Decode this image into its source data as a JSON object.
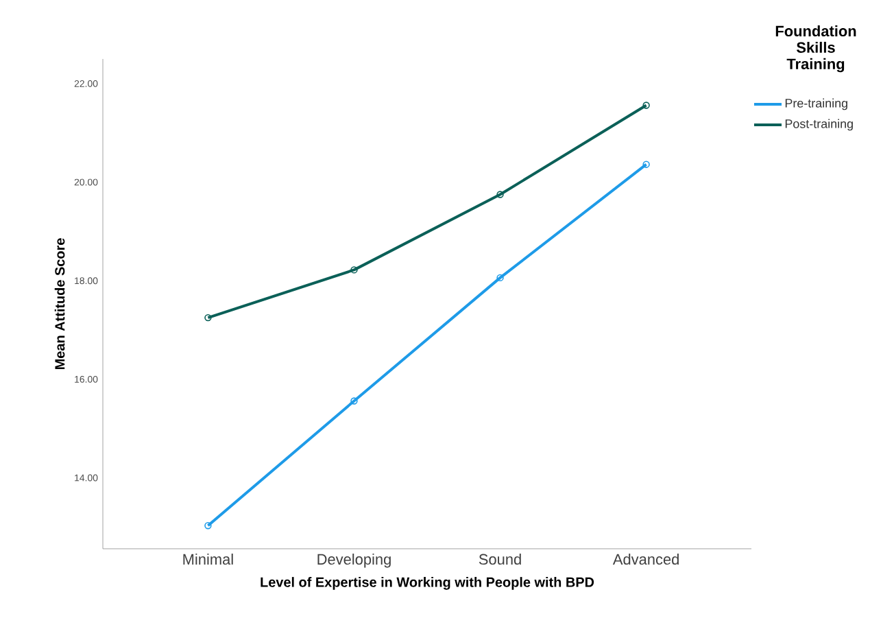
{
  "chart_data": {
    "type": "line",
    "xlabel": "Level of Expertise in Working with People with BPD",
    "ylabel": "Mean Attitude Score",
    "legend_title": "Foundation Skills Training",
    "categories": [
      "Minimal",
      "Developing",
      "Sound",
      "Advanced"
    ],
    "series": [
      {
        "name": "Pre-training",
        "color": "#1e9be8",
        "values": [
          13.03,
          15.56,
          18.06,
          20.36
        ]
      },
      {
        "name": "Post-training",
        "color": "#0b6058",
        "values": [
          17.25,
          18.22,
          19.75,
          21.56
        ]
      }
    ],
    "ylim": [
      12.56,
      22.5
    ],
    "yticks": [
      {
        "value": 14,
        "label": "14.00"
      },
      {
        "value": 16,
        "label": "16.00"
      },
      {
        "value": 18,
        "label": "18.00"
      },
      {
        "value": 20,
        "label": "20.00"
      },
      {
        "value": 22,
        "label": "22.00"
      }
    ],
    "legend": "top right",
    "marker": "circle",
    "line_style": "solid",
    "grid": false
  }
}
